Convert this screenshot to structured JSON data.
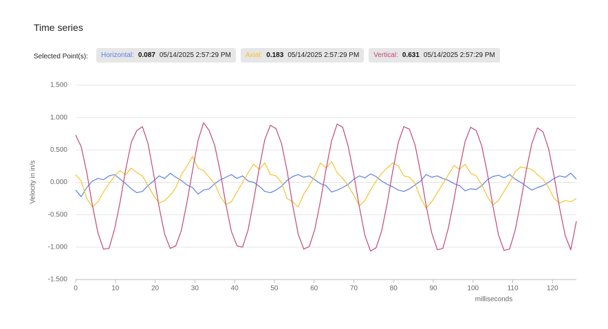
{
  "chart_data": {
    "type": "line",
    "title": "Time series",
    "selected_label": "Selected Point(s):",
    "xlabel": "milliseconds",
    "ylabel": "Velocity in in/s",
    "xlim": [
      0,
      126
    ],
    "xticks": [
      0,
      10,
      20,
      30,
      40,
      50,
      60,
      70,
      80,
      90,
      100,
      110,
      120
    ],
    "ylim": [
      -1.5,
      1.5
    ],
    "yticks": [
      {
        "value": -1.5,
        "label": "-1.500"
      },
      {
        "value": -1,
        "label": "-1.000"
      },
      {
        "value": -0.5,
        "label": "-0.500"
      },
      {
        "value": 0,
        "label": "0.000"
      },
      {
        "value": 0.5,
        "label": "0.500"
      },
      {
        "value": 1,
        "label": "1.000"
      },
      {
        "value": 1.5,
        "label": "1.500"
      }
    ],
    "grid": true,
    "x": [
      0,
      1.4,
      2.8,
      4.2,
      5.6,
      7,
      8.4,
      9.8,
      11.2,
      12.6,
      14,
      15.4,
      16.8,
      18.2,
      19.6,
      21,
      22.4,
      23.8,
      25.2,
      26.6,
      28,
      29.4,
      30.8,
      32.2,
      33.6,
      35,
      36.4,
      37.8,
      39.2,
      40.6,
      42,
      43.4,
      44.8,
      46.2,
      47.6,
      49,
      50.4,
      51.8,
      53.2,
      54.6,
      56,
      57.4,
      58.8,
      60.2,
      61.6,
      63,
      64.4,
      65.8,
      67.2,
      68.6,
      70,
      71.4,
      72.8,
      74.2,
      75.6,
      77,
      78.4,
      79.8,
      81.2,
      82.6,
      84,
      85.4,
      86.8,
      88.2,
      89.6,
      91,
      92.4,
      93.8,
      95.2,
      96.6,
      98,
      99.4,
      100.8,
      102.2,
      103.6,
      105,
      106.4,
      107.8,
      109.2,
      110.6,
      112,
      113.4,
      114.8,
      116.2,
      117.6,
      119,
      120.4,
      121.8,
      123.2,
      124.6,
      126
    ],
    "series": [
      {
        "name": "Horizontal:",
        "color": "#5b7fe8",
        "selected_value": 0.087,
        "selected_time": "05/14/2025 2:57:29 PM",
        "values": [
          -0.12,
          -0.22,
          -0.08,
          0.02,
          0.06,
          0.04,
          0.1,
          0.12,
          0.05,
          -0.02,
          -0.1,
          -0.16,
          -0.14,
          -0.05,
          0.02,
          0.1,
          0.06,
          0.14,
          0.08,
          0.03,
          -0.04,
          -0.08,
          -0.18,
          -0.12,
          -0.1,
          -0.02,
          0.04,
          0.08,
          0.12,
          0.06,
          0.1,
          0.02,
          0.0,
          -0.06,
          -0.14,
          -0.16,
          -0.12,
          -0.06,
          0.03,
          0.09,
          0.12,
          0.08,
          0.1,
          0.04,
          -0.02,
          -0.05,
          -0.15,
          -0.12,
          -0.08,
          -0.03,
          0.05,
          0.1,
          0.07,
          0.13,
          0.09,
          0.02,
          -0.03,
          -0.07,
          -0.12,
          -0.14,
          -0.1,
          -0.04,
          0.02,
          0.12,
          0.08,
          0.1,
          0.06,
          0.03,
          -0.02,
          -0.05,
          -0.13,
          -0.1,
          -0.11,
          -0.05,
          0.04,
          0.09,
          0.11,
          0.07,
          0.12,
          0.05,
          0.0,
          -0.06,
          -0.12,
          -0.08,
          -0.05,
          0.0,
          0.06,
          0.1,
          0.08,
          0.14,
          0.05
        ]
      },
      {
        "name": "Axial:",
        "color": "#f5c230",
        "selected_value": 0.183,
        "selected_time": "05/14/2025 2:57:29 PM",
        "values": [
          0.12,
          0.02,
          -0.25,
          -0.38,
          -0.3,
          -0.15,
          -0.02,
          0.1,
          0.18,
          0.12,
          0.22,
          0.15,
          0.1,
          -0.05,
          -0.2,
          -0.32,
          -0.28,
          -0.2,
          -0.08,
          0.12,
          0.25,
          0.4,
          0.22,
          0.18,
          0.08,
          -0.02,
          -0.22,
          -0.34,
          -0.3,
          -0.15,
          0.0,
          0.15,
          0.28,
          0.2,
          0.3,
          0.12,
          0.1,
          0.0,
          -0.25,
          -0.3,
          -0.38,
          -0.18,
          -0.05,
          0.1,
          0.3,
          0.22,
          0.32,
          0.15,
          0.06,
          -0.05,
          -0.2,
          -0.36,
          -0.28,
          -0.12,
          0.02,
          0.14,
          0.22,
          0.3,
          0.25,
          0.1,
          0.08,
          -0.02,
          -0.24,
          -0.4,
          -0.3,
          -0.16,
          -0.02,
          0.12,
          0.26,
          0.2,
          0.28,
          0.14,
          0.1,
          -0.04,
          -0.22,
          -0.35,
          -0.28,
          -0.14,
          0.0,
          0.16,
          0.24,
          0.22,
          0.2,
          0.12,
          0.05,
          -0.08,
          -0.25,
          -0.32,
          -0.28,
          -0.3,
          -0.25
        ]
      },
      {
        "name": "Vertical:",
        "color": "#c2477a",
        "selected_value": 0.631,
        "selected_time": "05/14/2025 2:57:29 PM",
        "values": [
          0.73,
          0.55,
          0.15,
          -0.35,
          -0.78,
          -1.03,
          -1.02,
          -0.72,
          -0.3,
          0.2,
          0.62,
          0.8,
          0.86,
          0.6,
          0.14,
          -0.38,
          -0.8,
          -1.02,
          -0.98,
          -0.74,
          -0.31,
          0.18,
          0.65,
          0.92,
          0.8,
          0.57,
          0.16,
          -0.34,
          -0.76,
          -0.98,
          -1.0,
          -0.73,
          -0.28,
          0.22,
          0.66,
          0.88,
          0.83,
          0.6,
          0.18,
          -0.35,
          -0.8,
          -1.03,
          -0.99,
          -0.72,
          -0.29,
          0.2,
          0.64,
          0.9,
          0.85,
          0.55,
          0.12,
          -0.38,
          -0.82,
          -1.06,
          -1.01,
          -0.75,
          -0.32,
          0.18,
          0.62,
          0.86,
          0.82,
          0.58,
          0.15,
          -0.36,
          -0.78,
          -1.04,
          -1.02,
          -0.7,
          -0.27,
          0.21,
          0.63,
          0.85,
          0.8,
          0.56,
          0.14,
          -0.37,
          -0.81,
          -1.05,
          -1.03,
          -0.74,
          -0.3,
          0.19,
          0.6,
          0.84,
          0.78,
          0.52,
          0.1,
          -0.4,
          -0.82,
          -1.04,
          -0.6
        ]
      }
    ]
  }
}
